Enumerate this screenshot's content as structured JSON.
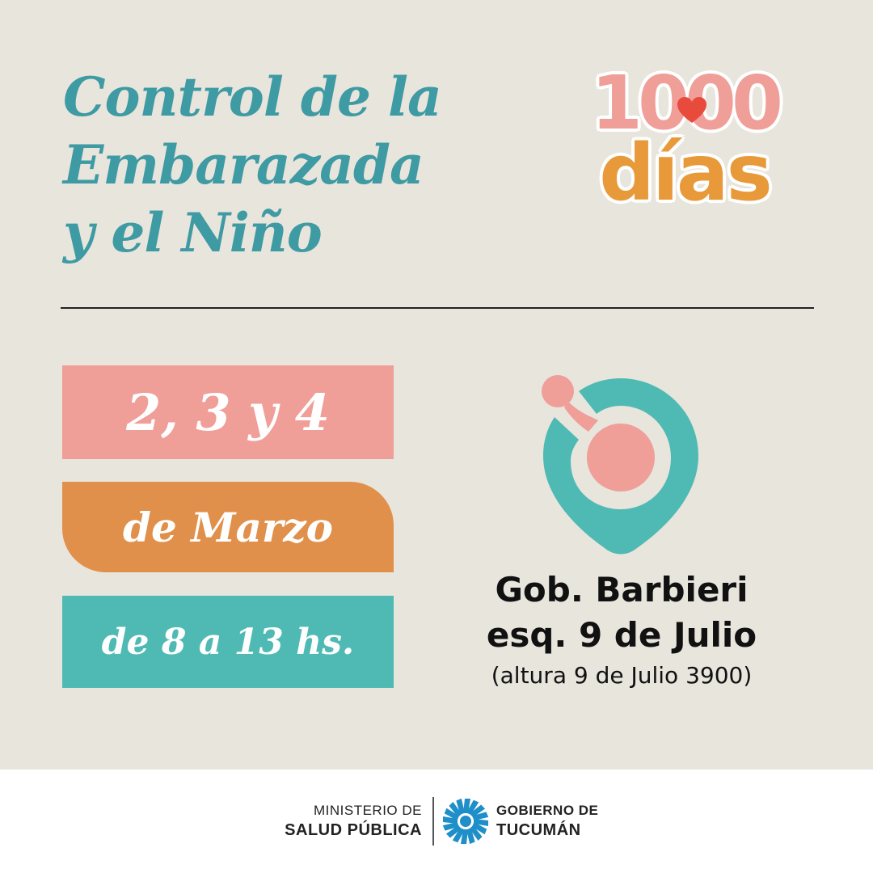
{
  "title": {
    "line1": "Control de la",
    "line2": "Embarazada",
    "line3": "y el Niño"
  },
  "logo": {
    "number": "1000",
    "word": "días",
    "heart_color": "#e84a3c"
  },
  "schedule": {
    "dates": "2, 3 y 4",
    "month": "de Marzo",
    "hours": "de 8 a 13 hs."
  },
  "location": {
    "icon": "location-pin-icon",
    "line1": "Gob. Barbieri",
    "line2": "esq. 9 de Julio",
    "line3": "(altura 9 de Julio 3900)"
  },
  "footer": {
    "ministry_line1": "MINISTERIO DE",
    "ministry_line2": "SALUD PÚBLICA",
    "gov_line1": "GOBIERNO DE",
    "gov_line2": "TUCUMÁN",
    "gov_icon": "sun-emblem-icon"
  },
  "colors": {
    "background": "#e8e5dd",
    "teal": "#3e9aa3",
    "pink": "#ef9e98",
    "orange": "#e0904a",
    "mint": "#4fbab4",
    "gov_blue": "#1f8fc9"
  }
}
